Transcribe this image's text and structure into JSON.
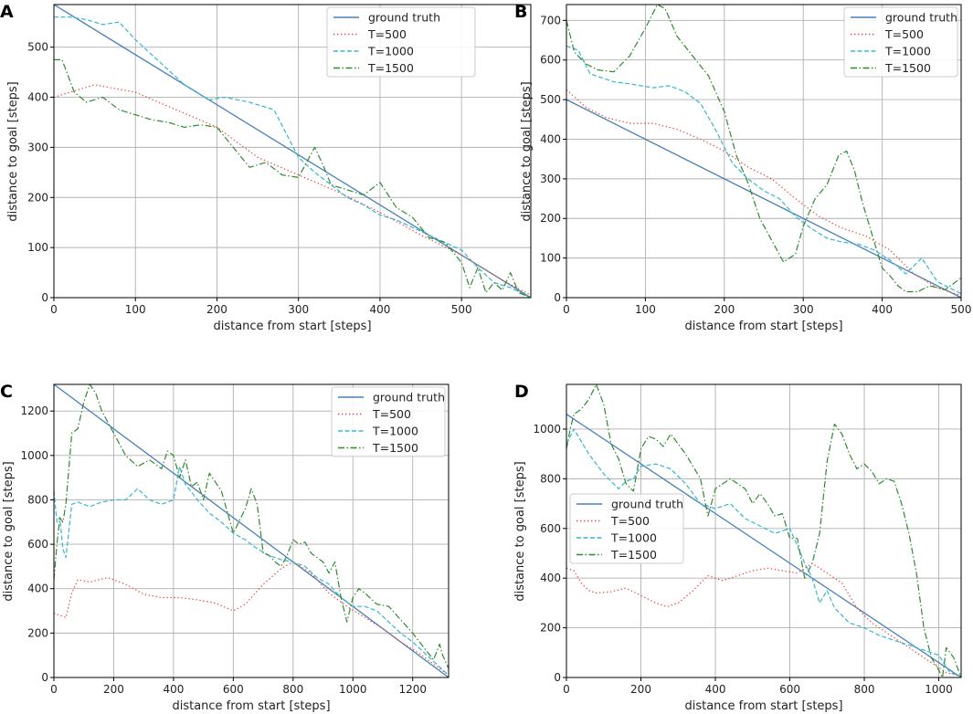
{
  "chart_data": [
    {
      "panel": "A",
      "type": "line",
      "xlabel": "distance from start [steps]",
      "ylabel": "distance to goal [steps]",
      "xlim": [
        0,
        585
      ],
      "ylim": [
        0,
        585
      ],
      "xticks": [
        0,
        100,
        200,
        300,
        400,
        500
      ],
      "yticks": [
        0,
        100,
        200,
        300,
        400,
        500
      ],
      "grid": true,
      "legend_position": "top-right",
      "series": [
        {
          "name": "ground truth",
          "style": "solid",
          "color": "#4a7fb8",
          "x": [
            0,
            585
          ],
          "y": [
            585,
            0
          ]
        },
        {
          "name": "T=500",
          "style": "dotted",
          "color": "#e8453c",
          "x": [
            0,
            50,
            100,
            150,
            200,
            250,
            300,
            350,
            400,
            450,
            500,
            550,
            585
          ],
          "y": [
            400,
            425,
            410,
            375,
            340,
            280,
            245,
            210,
            170,
            125,
            85,
            35,
            5
          ]
        },
        {
          "name": "T=1000",
          "style": "dashed",
          "color": "#36b6d0",
          "x": [
            0,
            20,
            40,
            60,
            80,
            100,
            130,
            160,
            190,
            210,
            240,
            270,
            300,
            320,
            340,
            360,
            380,
            400,
            420,
            440,
            460,
            480,
            500,
            520,
            540,
            560,
            585
          ],
          "y": [
            560,
            560,
            555,
            545,
            550,
            515,
            470,
            425,
            395,
            400,
            390,
            375,
            280,
            250,
            225,
            200,
            185,
            165,
            155,
            140,
            125,
            110,
            95,
            60,
            30,
            20,
            0
          ]
        },
        {
          "name": "T=1500",
          "style": "dashdot",
          "color": "#2f8a2f",
          "x": [
            0,
            10,
            25,
            40,
            60,
            80,
            100,
            120,
            140,
            160,
            180,
            200,
            220,
            240,
            260,
            280,
            300,
            310,
            320,
            330,
            340,
            360,
            380,
            400,
            420,
            440,
            460,
            480,
            500,
            510,
            520,
            530,
            540,
            550,
            560,
            570,
            585
          ],
          "y": [
            475,
            475,
            410,
            390,
            400,
            375,
            365,
            355,
            350,
            340,
            345,
            340,
            300,
            260,
            270,
            245,
            240,
            270,
            300,
            265,
            225,
            215,
            205,
            230,
            180,
            160,
            120,
            110,
            70,
            20,
            60,
            10,
            30,
            15,
            50,
            10,
            0
          ]
        }
      ]
    },
    {
      "panel": "B",
      "type": "line",
      "xlabel": "distance from start [steps]",
      "ylabel": "distance to goal [steps]",
      "xlim": [
        0,
        500
      ],
      "ylim": [
        0,
        740
      ],
      "xticks": [
        0,
        100,
        200,
        300,
        400,
        500
      ],
      "yticks": [
        0,
        100,
        200,
        300,
        400,
        500,
        600,
        700
      ],
      "grid": true,
      "legend_position": "top-right",
      "series": [
        {
          "name": "ground truth",
          "style": "solid",
          "color": "#4a7fb8",
          "x": [
            0,
            500
          ],
          "y": [
            500,
            0
          ]
        },
        {
          "name": "T=500",
          "style": "dotted",
          "color": "#e8453c",
          "x": [
            0,
            25,
            50,
            80,
            110,
            140,
            170,
            200,
            230,
            260,
            290,
            320,
            350,
            380,
            410,
            440,
            470,
            500
          ],
          "y": [
            525,
            480,
            455,
            440,
            440,
            425,
            400,
            370,
            330,
            300,
            250,
            205,
            175,
            155,
            120,
            60,
            25,
            5
          ]
        },
        {
          "name": "T=1000",
          "style": "dashed",
          "color": "#36b6d0",
          "x": [
            0,
            15,
            30,
            60,
            80,
            110,
            130,
            150,
            170,
            190,
            210,
            230,
            250,
            270,
            290,
            310,
            330,
            350,
            370,
            390,
            410,
            430,
            450,
            470,
            500
          ],
          "y": [
            635,
            625,
            565,
            545,
            540,
            530,
            535,
            520,
            490,
            420,
            340,
            300,
            270,
            250,
            205,
            175,
            150,
            140,
            135,
            120,
            95,
            60,
            100,
            40,
            10
          ]
        },
        {
          "name": "T=1500",
          "style": "dashdot",
          "color": "#2f8a2f",
          "x": [
            0,
            10,
            25,
            40,
            60,
            80,
            100,
            115,
            125,
            140,
            160,
            180,
            200,
            215,
            230,
            245,
            260,
            275,
            290,
            300,
            315,
            330,
            345,
            355,
            365,
            375,
            390,
            400,
            410,
            420,
            430,
            445,
            460,
            480,
            500
          ],
          "y": [
            700,
            620,
            590,
            575,
            570,
            610,
            680,
            740,
            730,
            660,
            610,
            560,
            470,
            360,
            290,
            200,
            145,
            90,
            110,
            180,
            250,
            285,
            360,
            370,
            320,
            240,
            140,
            75,
            55,
            30,
            15,
            15,
            30,
            20,
            50
          ]
        }
      ]
    },
    {
      "panel": "C",
      "type": "line",
      "xlabel": "distance from start [steps]",
      "ylabel": "distance to goal [steps]",
      "xlim": [
        0,
        1320
      ],
      "ylim": [
        0,
        1320
      ],
      "xticks": [
        0,
        200,
        400,
        600,
        800,
        1000,
        1200
      ],
      "yticks": [
        0,
        200,
        400,
        600,
        800,
        1000,
        1200
      ],
      "grid": true,
      "legend_position": "top-right",
      "series": [
        {
          "name": "ground truth",
          "style": "solid",
          "color": "#4a7fb8",
          "x": [
            0,
            1320
          ],
          "y": [
            1320,
            0
          ]
        },
        {
          "name": "T=500",
          "style": "dotted",
          "color": "#e8453c",
          "x": [
            0,
            20,
            40,
            60,
            80,
            120,
            180,
            240,
            300,
            360,
            420,
            480,
            540,
            600,
            640,
            700,
            760,
            800,
            860,
            920,
            980,
            1040,
            1100,
            1160,
            1220,
            1280,
            1320
          ],
          "y": [
            290,
            280,
            270,
            380,
            440,
            430,
            450,
            420,
            375,
            360,
            360,
            350,
            335,
            300,
            330,
            420,
            490,
            520,
            470,
            380,
            320,
            270,
            220,
            160,
            110,
            50,
            10
          ]
        },
        {
          "name": "T=1000",
          "style": "dashed",
          "color": "#36b6d0",
          "x": [
            0,
            10,
            20,
            30,
            40,
            60,
            80,
            120,
            160,
            200,
            240,
            280,
            320,
            360,
            400,
            420,
            440,
            480,
            520,
            560,
            600,
            640,
            680,
            720,
            760,
            800,
            840,
            880,
            920,
            960,
            1000,
            1040,
            1080,
            1120,
            1160,
            1200,
            1240,
            1280,
            1320
          ],
          "y": [
            840,
            700,
            720,
            580,
            540,
            780,
            790,
            770,
            790,
            800,
            800,
            850,
            800,
            780,
            800,
            950,
            870,
            800,
            740,
            700,
            650,
            620,
            580,
            550,
            530,
            520,
            500,
            450,
            420,
            360,
            320,
            320,
            300,
            250,
            200,
            160,
            110,
            60,
            10
          ]
        },
        {
          "name": "T=1500",
          "style": "dashdot",
          "color": "#2f8a2f",
          "x": [
            0,
            10,
            20,
            30,
            40,
            60,
            80,
            100,
            120,
            140,
            160,
            200,
            240,
            280,
            320,
            360,
            380,
            400,
            420,
            440,
            460,
            480,
            500,
            520,
            560,
            600,
            640,
            660,
            680,
            700,
            720,
            740,
            760,
            780,
            800,
            820,
            840,
            860,
            880,
            900,
            920,
            940,
            960,
            980,
            1000,
            1020,
            1040,
            1080,
            1120,
            1160,
            1200,
            1240,
            1270,
            1290,
            1300,
            1320
          ],
          "y": [
            440,
            600,
            720,
            700,
            780,
            1100,
            1120,
            1240,
            1320,
            1280,
            1200,
            1100,
            1000,
            950,
            980,
            940,
            1020,
            1000,
            900,
            980,
            860,
            880,
            800,
            920,
            840,
            650,
            760,
            850,
            780,
            560,
            550,
            520,
            500,
            550,
            620,
            600,
            610,
            560,
            540,
            520,
            470,
            520,
            360,
            250,
            360,
            400,
            380,
            330,
            320,
            260,
            200,
            130,
            80,
            150,
            100,
            40
          ]
        }
      ]
    },
    {
      "panel": "D",
      "type": "line",
      "xlabel": "distance from start [steps]",
      "ylabel": "distance to goal [steps]",
      "xlim": [
        0,
        1060
      ],
      "ylim": [
        0,
        1180
      ],
      "xticks": [
        0,
        200,
        400,
        600,
        800,
        1000
      ],
      "yticks": [
        0,
        200,
        400,
        600,
        800,
        1000
      ],
      "grid": true,
      "legend_position": "center-left",
      "series": [
        {
          "name": "ground truth",
          "style": "solid",
          "color": "#4a7fb8",
          "x": [
            0,
            1060
          ],
          "y": [
            1060,
            0
          ]
        },
        {
          "name": "T=500",
          "style": "dotted",
          "color": "#e8453c",
          "x": [
            0,
            20,
            40,
            60,
            80,
            120,
            160,
            200,
            240,
            270,
            300,
            340,
            380,
            420,
            460,
            500,
            540,
            580,
            620,
            660,
            700,
            740,
            780,
            820,
            860,
            900,
            940,
            980,
            1020,
            1060
          ],
          "y": [
            440,
            430,
            380,
            350,
            340,
            345,
            360,
            330,
            300,
            285,
            300,
            350,
            410,
            390,
            410,
            430,
            440,
            430,
            420,
            460,
            420,
            380,
            280,
            220,
            180,
            140,
            100,
            60,
            20,
            5
          ]
        },
        {
          "name": "T=1000",
          "style": "dashed",
          "color": "#36b6d0",
          "x": [
            0,
            20,
            40,
            60,
            80,
            100,
            120,
            140,
            160,
            180,
            200,
            240,
            280,
            320,
            360,
            400,
            440,
            480,
            520,
            560,
            600,
            620,
            640,
            660,
            680,
            700,
            720,
            760,
            800,
            840,
            880,
            920,
            960,
            1000,
            1030,
            1060
          ],
          "y": [
            940,
            1000,
            950,
            900,
            860,
            820,
            790,
            760,
            790,
            800,
            850,
            860,
            840,
            780,
            700,
            680,
            700,
            640,
            610,
            580,
            600,
            530,
            460,
            400,
            300,
            350,
            280,
            220,
            200,
            170,
            150,
            130,
            110,
            90,
            20,
            5
          ]
        },
        {
          "name": "T=1500",
          "style": "dashdot",
          "color": "#2f8a2f",
          "x": [
            0,
            10,
            20,
            40,
            60,
            80,
            100,
            120,
            140,
            160,
            180,
            200,
            220,
            240,
            260,
            280,
            300,
            320,
            340,
            360,
            380,
            400,
            420,
            440,
            460,
            480,
            500,
            520,
            540,
            560,
            580,
            600,
            620,
            640,
            660,
            680,
            700,
            720,
            740,
            760,
            780,
            800,
            820,
            840,
            860,
            880,
            900,
            920,
            940,
            960,
            980,
            1000,
            1010,
            1020,
            1040,
            1060
          ],
          "y": [
            920,
            1000,
            1060,
            1080,
            1120,
            1180,
            1100,
            940,
            880,
            780,
            750,
            920,
            970,
            960,
            930,
            980,
            940,
            900,
            850,
            800,
            650,
            760,
            780,
            800,
            780,
            760,
            700,
            740,
            700,
            650,
            660,
            560,
            560,
            400,
            460,
            580,
            870,
            1020,
            980,
            900,
            840,
            860,
            830,
            780,
            800,
            790,
            700,
            580,
            420,
            200,
            80,
            30,
            0,
            120,
            80,
            0
          ]
        }
      ]
    }
  ]
}
